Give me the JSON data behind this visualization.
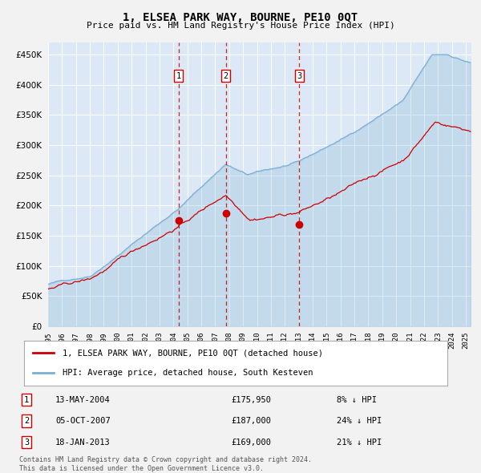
{
  "title": "1, ELSEA PARK WAY, BOURNE, PE10 0QT",
  "subtitle": "Price paid vs. HM Land Registry's House Price Index (HPI)",
  "legend_line1": "1, ELSEA PARK WAY, BOURNE, PE10 0QT (detached house)",
  "legend_line2": "HPI: Average price, detached house, South Kesteven",
  "footer_line1": "Contains HM Land Registry data © Crown copyright and database right 2024.",
  "footer_line2": "This data is licensed under the Open Government Licence v3.0.",
  "sales": [
    {
      "num": 1,
      "date": "13-MAY-2004",
      "price": 175950,
      "pct": "8%",
      "dir": "↓"
    },
    {
      "num": 2,
      "date": "05-OCT-2007",
      "price": 187000,
      "pct": "24%",
      "dir": "↓"
    },
    {
      "num": 3,
      "date": "18-JAN-2013",
      "price": 169000,
      "pct": "21%",
      "dir": "↓"
    }
  ],
  "sale_years": [
    2004.37,
    2007.76,
    2013.05
  ],
  "sale_prices": [
    175950,
    187000,
    169000
  ],
  "ylim": [
    0,
    470000
  ],
  "yticks": [
    0,
    50000,
    100000,
    150000,
    200000,
    250000,
    300000,
    350000,
    400000,
    450000
  ],
  "plot_bg": "#dce8f5",
  "fig_bg": "#f2f2f2",
  "line_red": "#cc0000",
  "line_blue": "#7aafd4",
  "grid_color": "#ffffff",
  "vline_color": "#cc0000",
  "xlim_left": 1995.0,
  "xlim_right": 2025.4
}
